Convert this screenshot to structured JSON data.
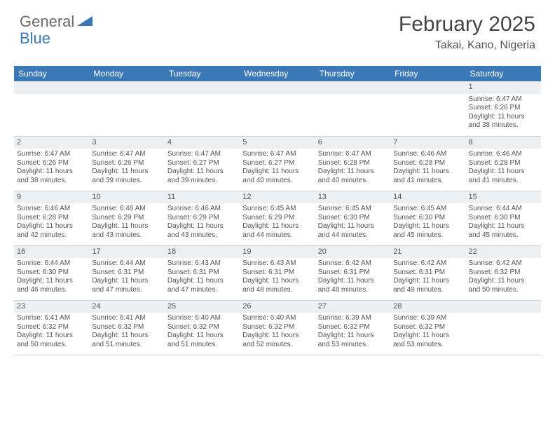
{
  "brand": {
    "text_a": "General",
    "text_b": "Blue"
  },
  "header": {
    "month_title": "February 2025",
    "location": "Takai, Kano, Nigeria"
  },
  "colors": {
    "header_bg": "#3b78b8",
    "daynum_bg": "#edf0f3",
    "row_border": "#c9d3dc",
    "text": "#555555",
    "brand_gray": "#6b6b6b",
    "brand_blue": "#3b78b8"
  },
  "day_names": [
    "Sunday",
    "Monday",
    "Tuesday",
    "Wednesday",
    "Thursday",
    "Friday",
    "Saturday"
  ],
  "weeks": [
    [
      null,
      null,
      null,
      null,
      null,
      null,
      {
        "n": "1",
        "sr": "Sunrise: 6:47 AM",
        "ss": "Sunset: 6:26 PM",
        "d1": "Daylight: 11 hours",
        "d2": "and 38 minutes."
      }
    ],
    [
      {
        "n": "2",
        "sr": "Sunrise: 6:47 AM",
        "ss": "Sunset: 6:26 PM",
        "d1": "Daylight: 11 hours",
        "d2": "and 38 minutes."
      },
      {
        "n": "3",
        "sr": "Sunrise: 6:47 AM",
        "ss": "Sunset: 6:26 PM",
        "d1": "Daylight: 11 hours",
        "d2": "and 39 minutes."
      },
      {
        "n": "4",
        "sr": "Sunrise: 6:47 AM",
        "ss": "Sunset: 6:27 PM",
        "d1": "Daylight: 11 hours",
        "d2": "and 39 minutes."
      },
      {
        "n": "5",
        "sr": "Sunrise: 6:47 AM",
        "ss": "Sunset: 6:27 PM",
        "d1": "Daylight: 11 hours",
        "d2": "and 40 minutes."
      },
      {
        "n": "6",
        "sr": "Sunrise: 6:47 AM",
        "ss": "Sunset: 6:28 PM",
        "d1": "Daylight: 11 hours",
        "d2": "and 40 minutes."
      },
      {
        "n": "7",
        "sr": "Sunrise: 6:46 AM",
        "ss": "Sunset: 6:28 PM",
        "d1": "Daylight: 11 hours",
        "d2": "and 41 minutes."
      },
      {
        "n": "8",
        "sr": "Sunrise: 6:46 AM",
        "ss": "Sunset: 6:28 PM",
        "d1": "Daylight: 11 hours",
        "d2": "and 41 minutes."
      }
    ],
    [
      {
        "n": "9",
        "sr": "Sunrise: 6:46 AM",
        "ss": "Sunset: 6:28 PM",
        "d1": "Daylight: 11 hours",
        "d2": "and 42 minutes."
      },
      {
        "n": "10",
        "sr": "Sunrise: 6:46 AM",
        "ss": "Sunset: 6:29 PM",
        "d1": "Daylight: 11 hours",
        "d2": "and 43 minutes."
      },
      {
        "n": "11",
        "sr": "Sunrise: 6:46 AM",
        "ss": "Sunset: 6:29 PM",
        "d1": "Daylight: 11 hours",
        "d2": "and 43 minutes."
      },
      {
        "n": "12",
        "sr": "Sunrise: 6:45 AM",
        "ss": "Sunset: 6:29 PM",
        "d1": "Daylight: 11 hours",
        "d2": "and 44 minutes."
      },
      {
        "n": "13",
        "sr": "Sunrise: 6:45 AM",
        "ss": "Sunset: 6:30 PM",
        "d1": "Daylight: 11 hours",
        "d2": "and 44 minutes."
      },
      {
        "n": "14",
        "sr": "Sunrise: 6:45 AM",
        "ss": "Sunset: 6:30 PM",
        "d1": "Daylight: 11 hours",
        "d2": "and 45 minutes."
      },
      {
        "n": "15",
        "sr": "Sunrise: 6:44 AM",
        "ss": "Sunset: 6:30 PM",
        "d1": "Daylight: 11 hours",
        "d2": "and 45 minutes."
      }
    ],
    [
      {
        "n": "16",
        "sr": "Sunrise: 6:44 AM",
        "ss": "Sunset: 6:30 PM",
        "d1": "Daylight: 11 hours",
        "d2": "and 46 minutes."
      },
      {
        "n": "17",
        "sr": "Sunrise: 6:44 AM",
        "ss": "Sunset: 6:31 PM",
        "d1": "Daylight: 11 hours",
        "d2": "and 47 minutes."
      },
      {
        "n": "18",
        "sr": "Sunrise: 6:43 AM",
        "ss": "Sunset: 6:31 PM",
        "d1": "Daylight: 11 hours",
        "d2": "and 47 minutes."
      },
      {
        "n": "19",
        "sr": "Sunrise: 6:43 AM",
        "ss": "Sunset: 6:31 PM",
        "d1": "Daylight: 11 hours",
        "d2": "and 48 minutes."
      },
      {
        "n": "20",
        "sr": "Sunrise: 6:42 AM",
        "ss": "Sunset: 6:31 PM",
        "d1": "Daylight: 11 hours",
        "d2": "and 48 minutes."
      },
      {
        "n": "21",
        "sr": "Sunrise: 6:42 AM",
        "ss": "Sunset: 6:31 PM",
        "d1": "Daylight: 11 hours",
        "d2": "and 49 minutes."
      },
      {
        "n": "22",
        "sr": "Sunrise: 6:42 AM",
        "ss": "Sunset: 6:32 PM",
        "d1": "Daylight: 11 hours",
        "d2": "and 50 minutes."
      }
    ],
    [
      {
        "n": "23",
        "sr": "Sunrise: 6:41 AM",
        "ss": "Sunset: 6:32 PM",
        "d1": "Daylight: 11 hours",
        "d2": "and 50 minutes."
      },
      {
        "n": "24",
        "sr": "Sunrise: 6:41 AM",
        "ss": "Sunset: 6:32 PM",
        "d1": "Daylight: 11 hours",
        "d2": "and 51 minutes."
      },
      {
        "n": "25",
        "sr": "Sunrise: 6:40 AM",
        "ss": "Sunset: 6:32 PM",
        "d1": "Daylight: 11 hours",
        "d2": "and 51 minutes."
      },
      {
        "n": "26",
        "sr": "Sunrise: 6:40 AM",
        "ss": "Sunset: 6:32 PM",
        "d1": "Daylight: 11 hours",
        "d2": "and 52 minutes."
      },
      {
        "n": "27",
        "sr": "Sunrise: 6:39 AM",
        "ss": "Sunset: 6:32 PM",
        "d1": "Daylight: 11 hours",
        "d2": "and 53 minutes."
      },
      {
        "n": "28",
        "sr": "Sunrise: 6:39 AM",
        "ss": "Sunset: 6:32 PM",
        "d1": "Daylight: 11 hours",
        "d2": "and 53 minutes."
      },
      null
    ]
  ]
}
